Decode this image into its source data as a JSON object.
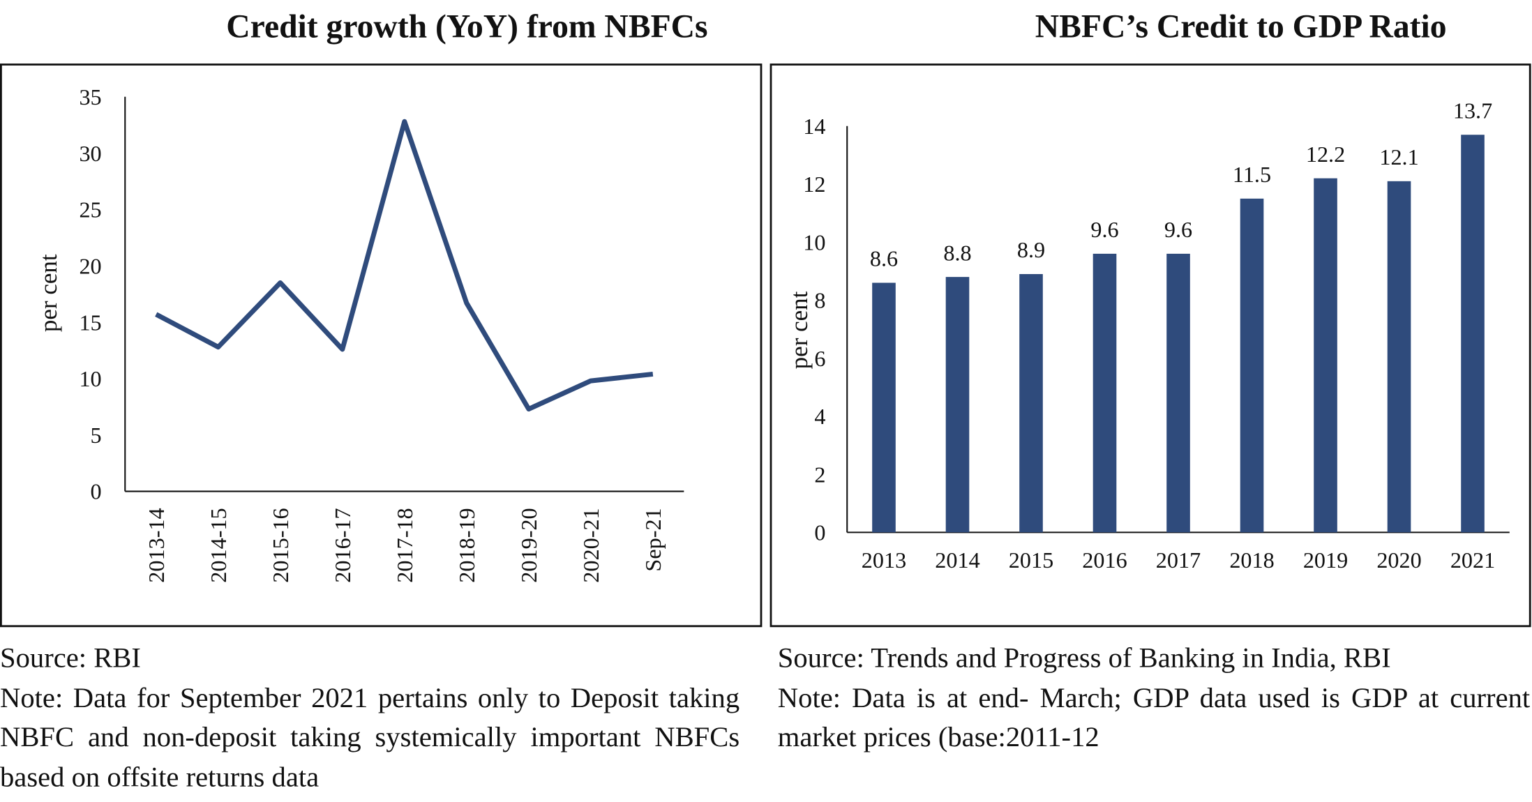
{
  "chart_data": [
    {
      "type": "line",
      "title": "Credit growth (YoY) from NBFCs",
      "y_label": "per cent",
      "categories": [
        "2013-14",
        "2014-15",
        "2015-16",
        "2016-17",
        "2017-18",
        "2018-19",
        "2019-20",
        "2020-21",
        "Sep-21"
      ],
      "values": [
        15.7,
        12.8,
        18.5,
        12.6,
        32.8,
        16.7,
        7.3,
        9.8,
        10.4
      ],
      "color": "#2f4b7c",
      "ylim": [
        0,
        35
      ],
      "yticks": [
        0,
        5,
        10,
        15,
        20,
        25,
        30,
        35
      ],
      "grid": false,
      "source": "Source: RBI",
      "note": "Note: Data for September 2021 pertains only to Deposit taking NBFC and non-deposit taking systemically important NBFCs based on offsite returns data"
    },
    {
      "type": "bar",
      "title": "NBFC’s Credit to GDP Ratio",
      "y_label": "per cent",
      "categories": [
        "2013",
        "2014",
        "2015",
        "2016",
        "2017",
        "2018",
        "2019",
        "2020",
        "2021"
      ],
      "values": [
        8.6,
        8.8,
        8.9,
        9.6,
        9.6,
        11.5,
        12.2,
        12.1,
        13.7
      ],
      "color": "#2f4b7c",
      "ylim": [
        0,
        14
      ],
      "yticks": [
        0,
        2,
        4,
        6,
        8,
        10,
        12,
        14
      ],
      "grid": false,
      "source": "Source: Trends and Progress of Banking in India, RBI",
      "note": "Note: Data is at end- March; GDP data used is GDP at current market prices (base:2011-12"
    }
  ]
}
